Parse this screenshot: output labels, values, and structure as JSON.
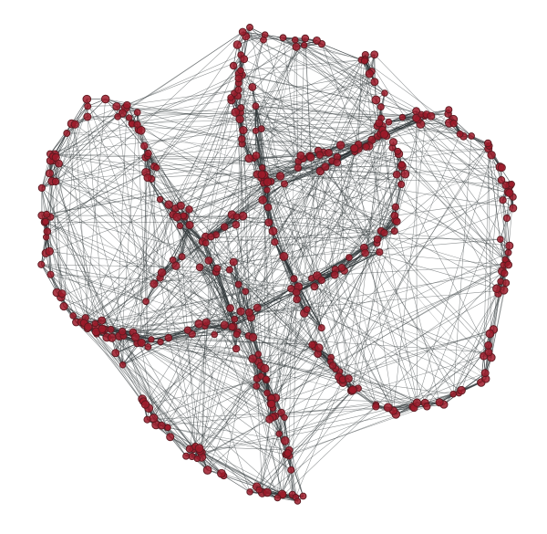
{
  "graph": {
    "node_fill": "#9e1b2a",
    "node_stroke": "#5a1a20",
    "edge_color": "#2f3638"
  }
}
